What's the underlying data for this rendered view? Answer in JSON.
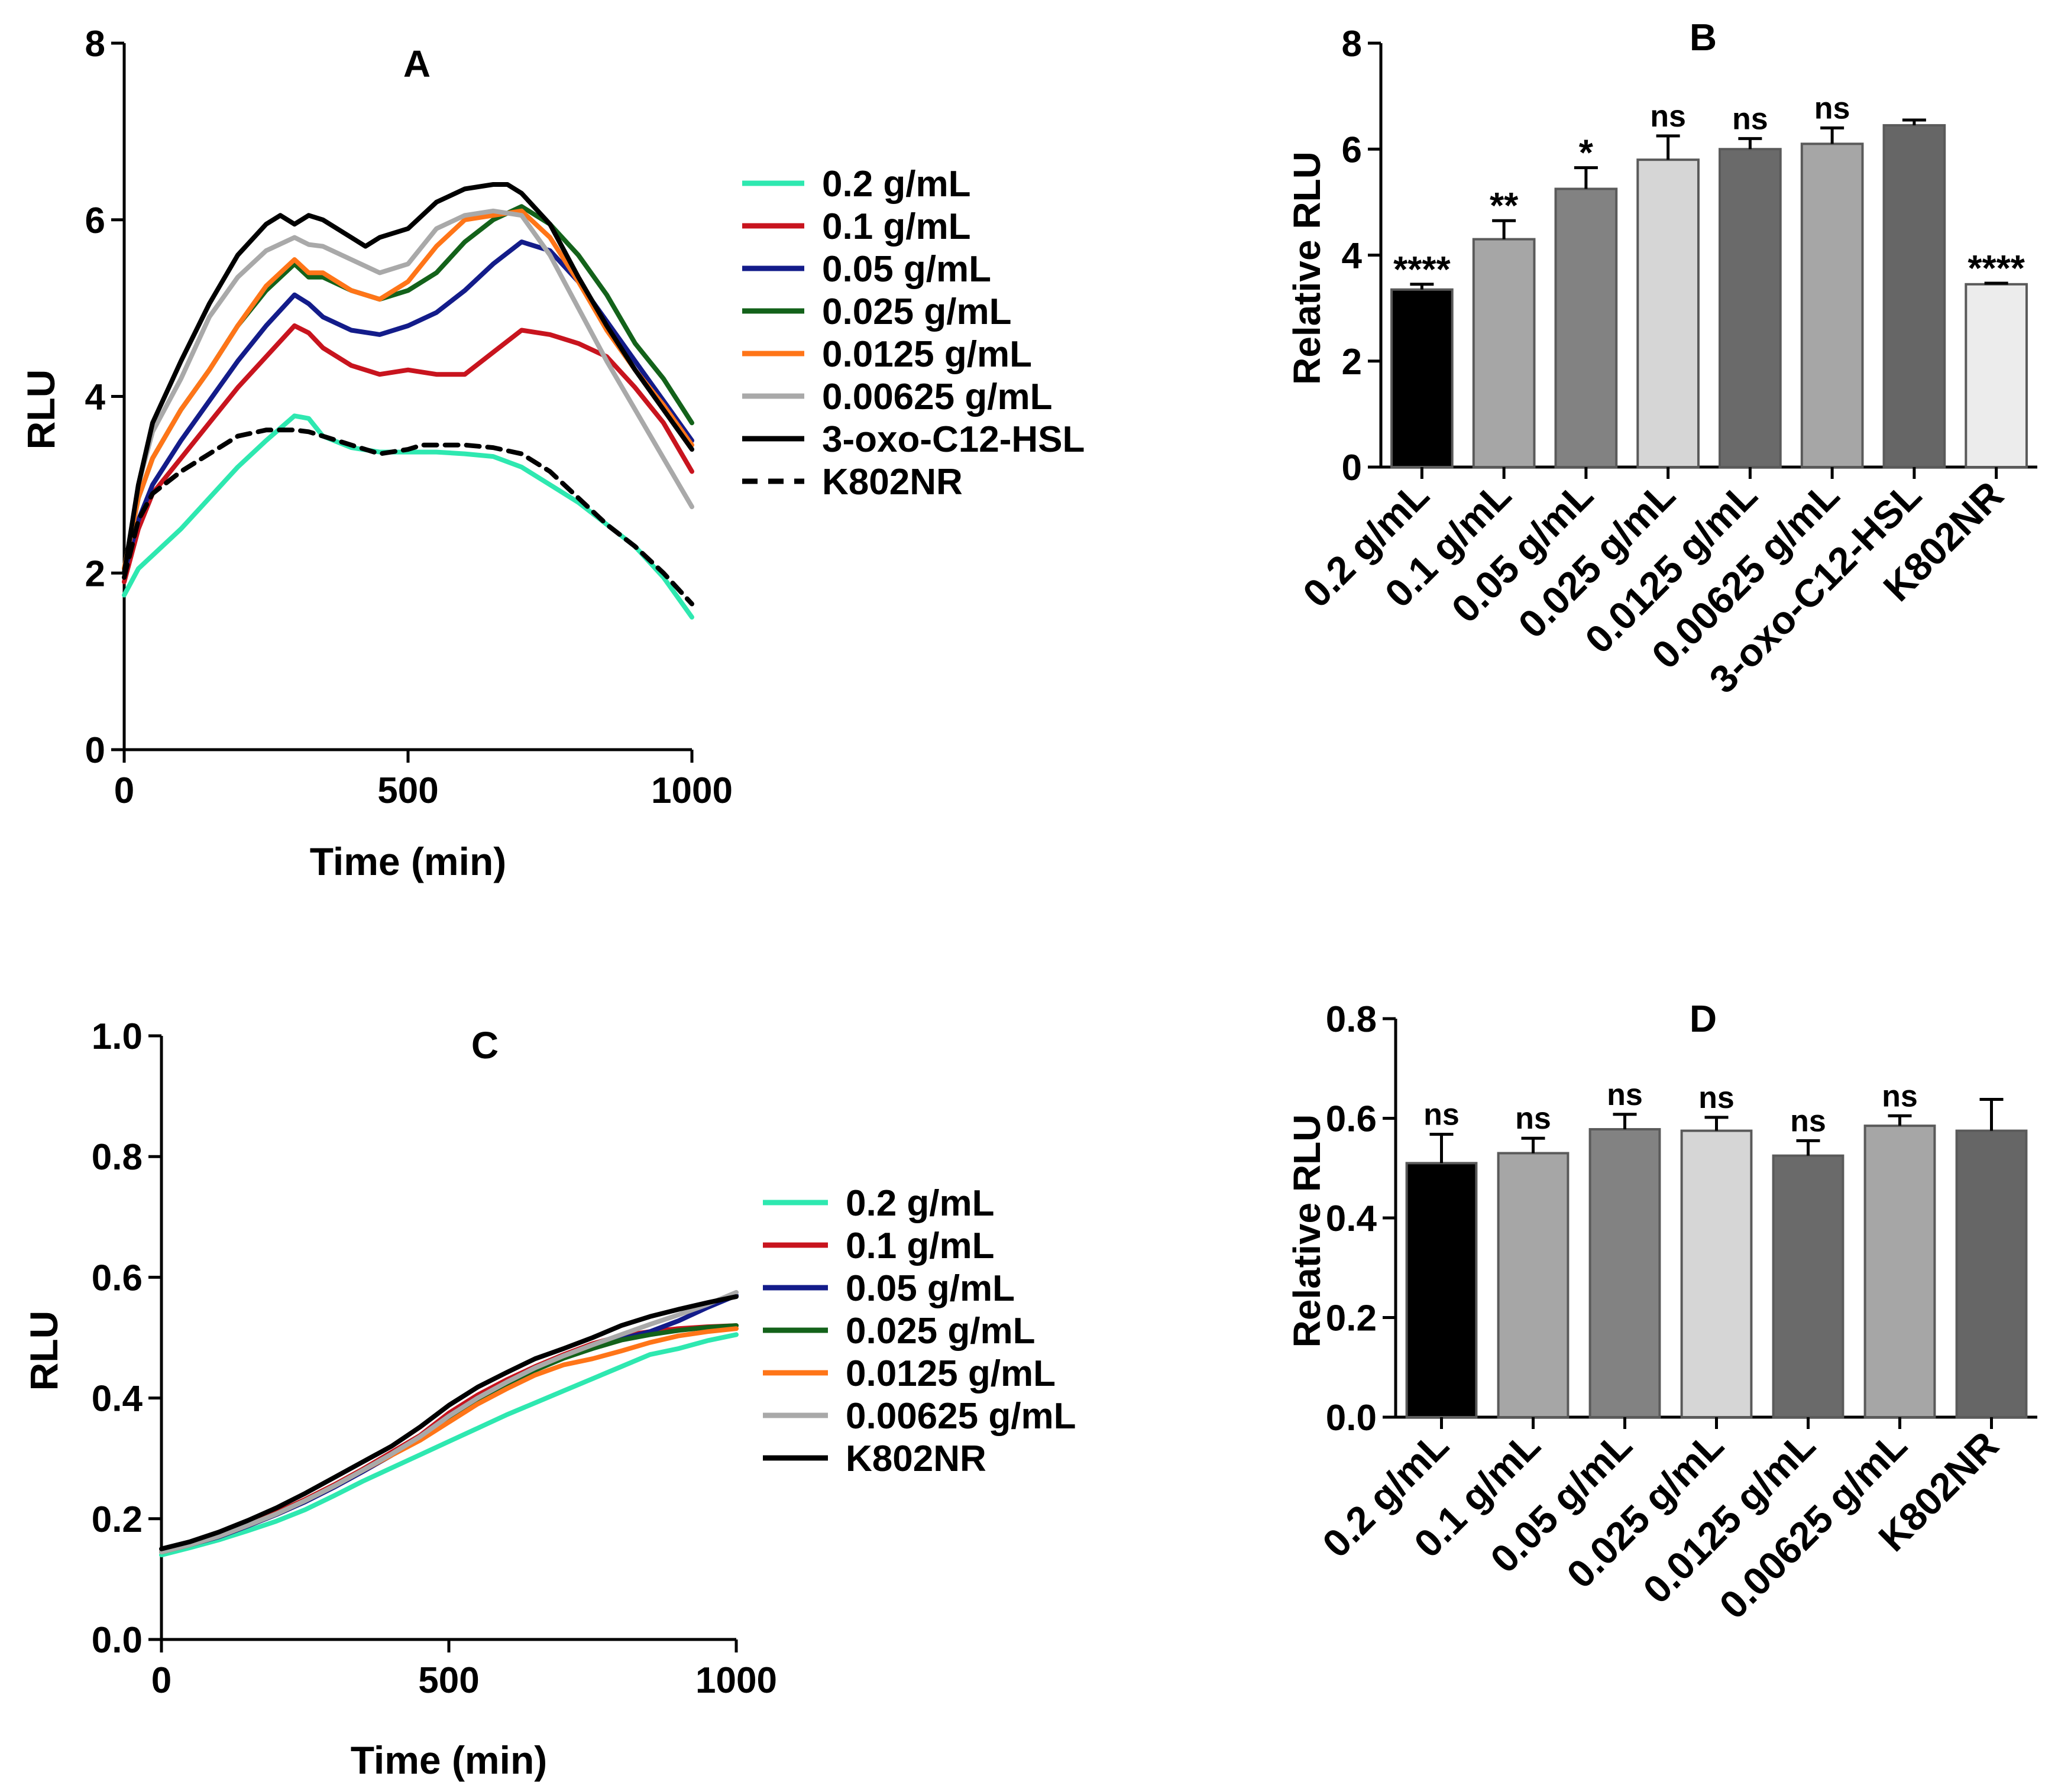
{
  "chart_data": [
    {
      "panel": "A",
      "type": "line",
      "title": "A",
      "xlabel": "Time (min)",
      "ylabel": "RLU",
      "xlim": [
        0,
        1000
      ],
      "ylim": [
        0,
        8
      ],
      "xticks": [
        0,
        500,
        1000
      ],
      "yticks": [
        0,
        2,
        4,
        6,
        8
      ],
      "series": [
        {
          "name": "0.2 g/mL",
          "color": "#2ee8b0",
          "dash": false,
          "x": [
            0,
            25,
            50,
            100,
            150,
            200,
            250,
            300,
            325,
            350,
            400,
            450,
            500,
            550,
            600,
            650,
            700,
            750,
            800,
            850,
            900,
            950,
            1000
          ],
          "y": [
            1.75,
            2.05,
            2.2,
            2.5,
            2.85,
            3.2,
            3.5,
            3.78,
            3.75,
            3.55,
            3.42,
            3.37,
            3.37,
            3.37,
            3.35,
            3.32,
            3.2,
            3.0,
            2.8,
            2.55,
            2.3,
            1.95,
            1.5
          ]
        },
        {
          "name": "0.1 g/mL",
          "color": "#c8141e",
          "dash": false,
          "x": [
            0,
            25,
            50,
            100,
            150,
            200,
            250,
            300,
            325,
            350,
            400,
            450,
            500,
            550,
            600,
            650,
            700,
            750,
            800,
            850,
            900,
            950,
            1000
          ],
          "y": [
            1.9,
            2.5,
            2.9,
            3.3,
            3.7,
            4.1,
            4.45,
            4.8,
            4.72,
            4.55,
            4.35,
            4.25,
            4.3,
            4.25,
            4.25,
            4.5,
            4.75,
            4.7,
            4.6,
            4.45,
            4.1,
            3.7,
            3.15
          ]
        },
        {
          "name": "0.05 g/mL",
          "color": "#131c8a",
          "dash": false,
          "x": [
            0,
            25,
            50,
            100,
            150,
            200,
            250,
            300,
            325,
            350,
            400,
            450,
            500,
            550,
            600,
            650,
            700,
            750,
            800,
            850,
            900,
            950,
            1000
          ],
          "y": [
            2.0,
            2.6,
            3.0,
            3.5,
            3.95,
            4.4,
            4.8,
            5.15,
            5.05,
            4.9,
            4.75,
            4.7,
            4.8,
            4.95,
            5.2,
            5.5,
            5.75,
            5.65,
            5.3,
            4.85,
            4.4,
            3.95,
            3.5
          ]
        },
        {
          "name": "0.025 g/mL",
          "color": "#13621a",
          "dash": false,
          "x": [
            0,
            25,
            50,
            100,
            150,
            200,
            250,
            300,
            325,
            350,
            400,
            450,
            500,
            550,
            600,
            650,
            700,
            750,
            800,
            850,
            900,
            950,
            1000
          ],
          "y": [
            2.05,
            2.85,
            3.3,
            3.85,
            4.3,
            4.8,
            5.2,
            5.5,
            5.35,
            5.35,
            5.2,
            5.1,
            5.2,
            5.4,
            5.75,
            6.0,
            6.15,
            5.95,
            5.6,
            5.15,
            4.6,
            4.2,
            3.7
          ]
        },
        {
          "name": "0.0125 g/mL",
          "color": "#ff7518",
          "dash": false,
          "x": [
            0,
            25,
            50,
            100,
            150,
            200,
            250,
            300,
            325,
            350,
            400,
            450,
            500,
            550,
            600,
            650,
            700,
            750,
            800,
            850,
            900,
            950,
            1000
          ],
          "y": [
            2.05,
            2.85,
            3.3,
            3.85,
            4.3,
            4.8,
            5.25,
            5.55,
            5.4,
            5.4,
            5.2,
            5.1,
            5.3,
            5.7,
            6.0,
            6.05,
            6.1,
            5.8,
            5.3,
            4.75,
            4.3,
            3.9,
            3.45
          ]
        },
        {
          "name": "0.00625 g/mL",
          "color": "#a9a9a9",
          "dash": false,
          "x": [
            0,
            25,
            50,
            100,
            150,
            200,
            250,
            300,
            325,
            350,
            400,
            450,
            500,
            550,
            600,
            650,
            700,
            750,
            800,
            850,
            900,
            950,
            1000
          ],
          "y": [
            2.0,
            3.0,
            3.6,
            4.2,
            4.9,
            5.35,
            5.65,
            5.8,
            5.72,
            5.7,
            5.55,
            5.4,
            5.5,
            5.9,
            6.05,
            6.1,
            6.05,
            5.6,
            5.0,
            4.4,
            3.85,
            3.3,
            2.75
          ]
        },
        {
          "name": "3-oxo-C12-HSL",
          "color": "#000000",
          "dash": false,
          "x": [
            0,
            25,
            50,
            100,
            150,
            200,
            250,
            275,
            300,
            325,
            350,
            400,
            425,
            450,
            500,
            550,
            600,
            650,
            675,
            700,
            750,
            800,
            850,
            900,
            950,
            1000
          ],
          "y": [
            2.0,
            3.0,
            3.7,
            4.4,
            5.05,
            5.6,
            5.95,
            6.05,
            5.95,
            6.05,
            6.0,
            5.8,
            5.7,
            5.8,
            5.9,
            6.2,
            6.35,
            6.4,
            6.4,
            6.3,
            5.95,
            5.35,
            4.8,
            4.3,
            3.85,
            3.4
          ]
        },
        {
          "name": "K802NR",
          "color": "#000000",
          "dash": true,
          "x": [
            0,
            25,
            50,
            100,
            150,
            200,
            250,
            300,
            325,
            350,
            400,
            450,
            500,
            525,
            550,
            600,
            650,
            700,
            750,
            800,
            850,
            900,
            950,
            1000
          ],
          "y": [
            1.95,
            2.6,
            2.9,
            3.15,
            3.35,
            3.55,
            3.62,
            3.62,
            3.6,
            3.55,
            3.45,
            3.35,
            3.4,
            3.45,
            3.45,
            3.45,
            3.42,
            3.35,
            3.15,
            2.85,
            2.55,
            2.3,
            2.0,
            1.65
          ]
        }
      ]
    },
    {
      "panel": "B",
      "type": "bar",
      "title": "B",
      "ylabel": "Relative RLU",
      "ylim": [
        0,
        8
      ],
      "yticks": [
        0,
        2,
        4,
        6,
        8
      ],
      "categories": [
        "0.2 g/mL",
        "0.1 g/mL",
        "0.05 g/mL",
        "0.025 g/mL",
        "0.0125 g/mL",
        "0.00625 g/mL",
        "3-oxo-C12-HSL",
        "K802NR"
      ],
      "values": [
        3.35,
        4.3,
        5.25,
        5.8,
        6.0,
        6.1,
        6.45,
        3.45
      ],
      "errors": [
        0.1,
        0.35,
        0.4,
        0.45,
        0.2,
        0.3,
        0.1,
        0.02
      ],
      "colors": [
        "#000000",
        "#a6a6a6",
        "#828282",
        "#d6d6d6",
        "#6a6a6a",
        "#a6a6a6",
        "#666666",
        "#ececec"
      ],
      "annotations": [
        "****",
        "**",
        "*",
        "ns",
        "ns",
        "ns",
        "",
        "****"
      ]
    },
    {
      "panel": "C",
      "type": "line",
      "title": "C",
      "xlabel": "Time (min)",
      "ylabel": "RLU",
      "xlim": [
        0,
        1000
      ],
      "ylim": [
        0,
        1.0
      ],
      "xticks": [
        0,
        500,
        1000
      ],
      "yticks": [
        0.0,
        0.2,
        0.4,
        0.6,
        0.8,
        1.0
      ],
      "series": [
        {
          "name": "0.2 g/mL",
          "color": "#2ee8b0",
          "dash": false,
          "x": [
            0,
            50,
            100,
            150,
            200,
            250,
            300,
            350,
            400,
            450,
            500,
            550,
            600,
            650,
            700,
            750,
            800,
            850,
            900,
            950,
            1000
          ],
          "y": [
            0.14,
            0.152,
            0.165,
            0.18,
            0.196,
            0.215,
            0.238,
            0.262,
            0.284,
            0.306,
            0.328,
            0.35,
            0.372,
            0.392,
            0.412,
            0.432,
            0.452,
            0.472,
            0.482,
            0.495,
            0.505
          ]
        },
        {
          "name": "0.1 g/mL",
          "color": "#c8141e",
          "dash": false,
          "x": [
            0,
            50,
            100,
            150,
            200,
            250,
            300,
            350,
            400,
            450,
            500,
            550,
            600,
            650,
            700,
            750,
            800,
            850,
            900,
            950,
            1000
          ],
          "y": [
            0.145,
            0.157,
            0.172,
            0.19,
            0.21,
            0.232,
            0.256,
            0.282,
            0.31,
            0.338,
            0.375,
            0.405,
            0.43,
            0.452,
            0.472,
            0.49,
            0.503,
            0.51,
            0.515,
            0.518,
            0.52
          ]
        },
        {
          "name": "0.05 g/mL",
          "color": "#131c8a",
          "dash": false,
          "x": [
            0,
            50,
            100,
            150,
            200,
            250,
            300,
            350,
            400,
            450,
            500,
            550,
            600,
            650,
            700,
            750,
            800,
            850,
            900,
            950,
            1000
          ],
          "y": [
            0.145,
            0.157,
            0.17,
            0.188,
            0.207,
            0.228,
            0.252,
            0.278,
            0.305,
            0.335,
            0.37,
            0.4,
            0.425,
            0.448,
            0.468,
            0.485,
            0.498,
            0.51,
            0.528,
            0.55,
            0.57
          ]
        },
        {
          "name": "0.025 g/mL",
          "color": "#13621a",
          "dash": false,
          "x": [
            0,
            50,
            100,
            150,
            200,
            250,
            300,
            350,
            400,
            450,
            500,
            550,
            600,
            650,
            700,
            750,
            800,
            850,
            900,
            950,
            1000
          ],
          "y": [
            0.145,
            0.157,
            0.171,
            0.189,
            0.208,
            0.23,
            0.254,
            0.28,
            0.307,
            0.335,
            0.368,
            0.398,
            0.423,
            0.446,
            0.466,
            0.482,
            0.496,
            0.505,
            0.512,
            0.517,
            0.52
          ]
        },
        {
          "name": "0.0125 g/mL",
          "color": "#ff7518",
          "dash": false,
          "x": [
            0,
            50,
            100,
            150,
            200,
            250,
            300,
            350,
            400,
            450,
            500,
            550,
            600,
            650,
            700,
            750,
            800,
            850,
            900,
            950,
            1000
          ],
          "y": [
            0.145,
            0.157,
            0.171,
            0.189,
            0.208,
            0.23,
            0.254,
            0.28,
            0.305,
            0.33,
            0.36,
            0.39,
            0.415,
            0.438,
            0.455,
            0.465,
            0.478,
            0.492,
            0.503,
            0.51,
            0.515
          ]
        },
        {
          "name": "0.00625 g/mL",
          "color": "#a9a9a9",
          "dash": false,
          "x": [
            0,
            50,
            100,
            150,
            200,
            250,
            300,
            350,
            400,
            450,
            500,
            550,
            600,
            650,
            700,
            750,
            800,
            850,
            900,
            950,
            1000
          ],
          "y": [
            0.145,
            0.157,
            0.171,
            0.189,
            0.208,
            0.23,
            0.254,
            0.28,
            0.307,
            0.336,
            0.37,
            0.4,
            0.426,
            0.45,
            0.47,
            0.488,
            0.505,
            0.522,
            0.538,
            0.555,
            0.575
          ]
        },
        {
          "name": "K802NR",
          "color": "#000000",
          "dash": false,
          "x": [
            0,
            50,
            100,
            150,
            200,
            250,
            300,
            350,
            400,
            450,
            500,
            550,
            600,
            650,
            700,
            750,
            800,
            850,
            900,
            950,
            1000
          ],
          "y": [
            0.15,
            0.162,
            0.178,
            0.197,
            0.218,
            0.242,
            0.268,
            0.294,
            0.32,
            0.352,
            0.388,
            0.418,
            0.442,
            0.465,
            0.482,
            0.5,
            0.52,
            0.535,
            0.547,
            0.558,
            0.568
          ]
        }
      ]
    },
    {
      "panel": "D",
      "type": "bar",
      "title": "D",
      "ylabel": "Relative RLU",
      "ylim": [
        0,
        0.8
      ],
      "yticks": [
        0.0,
        0.2,
        0.4,
        0.6,
        0.8
      ],
      "categories": [
        "0.2 g/mL",
        "0.1 g/mL",
        "0.05 g/mL",
        "0.025 g/mL",
        "0.0125 g/mL",
        "0.00625 g/mL",
        "K802NR"
      ],
      "values": [
        0.51,
        0.53,
        0.578,
        0.575,
        0.525,
        0.585,
        0.575
      ],
      "errors": [
        0.058,
        0.03,
        0.03,
        0.027,
        0.03,
        0.02,
        0.063
      ],
      "colors": [
        "#000000",
        "#a6a6a6",
        "#828282",
        "#d6d6d6",
        "#6a6a6a",
        "#a6a6a6",
        "#666666"
      ],
      "annotations": [
        "ns",
        "ns",
        "ns",
        "ns",
        "ns",
        "ns",
        ""
      ]
    }
  ]
}
